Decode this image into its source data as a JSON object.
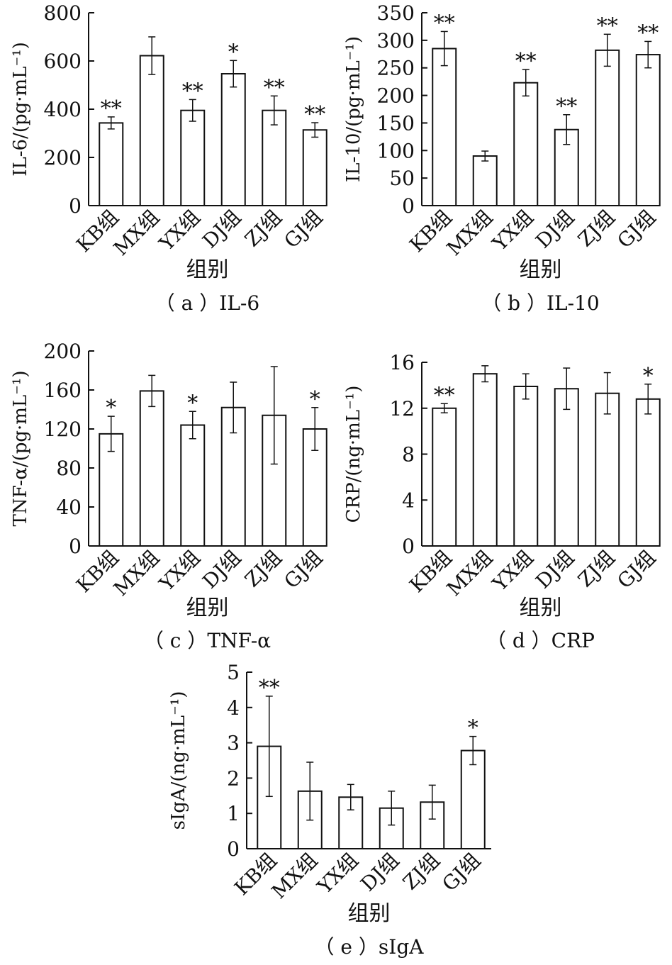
{
  "chart_data": [
    {
      "type": "bar",
      "caption": "（ a ）IL-6",
      "xlabel": "组别",
      "ylabel": "IL-6/(pg·mL⁻¹)",
      "categories": [
        "KB组",
        "MX组",
        "YX组",
        "DJ组",
        "ZJ组",
        "GJ组"
      ],
      "values": [
        343,
        622,
        395,
        547,
        395,
        314
      ],
      "errors": [
        25,
        78,
        45,
        55,
        60,
        30
      ],
      "annotations": [
        "**",
        "",
        "**",
        "*",
        "**",
        "**"
      ],
      "yticks": [
        "0",
        "200",
        "400",
        "600",
        "800"
      ],
      "ylim": [
        0,
        800
      ]
    },
    {
      "type": "bar",
      "caption": "（ b ）IL-10",
      "xlabel": "组别",
      "ylabel": "IL-10/(pg·mL⁻¹)",
      "categories": [
        "KB组",
        "MX组",
        "YX组",
        "DJ组",
        "ZJ组",
        "GJ组"
      ],
      "values": [
        285,
        90,
        223,
        138,
        282,
        274
      ],
      "errors": [
        31,
        9,
        24,
        27,
        29,
        24
      ],
      "annotations": [
        "**",
        "",
        "**",
        "**",
        "**",
        "**"
      ],
      "yticks": [
        "0",
        "50",
        "100",
        "150",
        "200",
        "250",
        "300",
        "350"
      ],
      "ylim": [
        0,
        350
      ]
    },
    {
      "type": "bar",
      "caption": "（ c ）TNF-α",
      "xlabel": "组别",
      "ylabel": "TNF-α/(pg·mL⁻¹)",
      "categories": [
        "KB组",
        "MX组",
        "YX组",
        "DJ组",
        "ZJ组",
        "GJ组"
      ],
      "values": [
        115,
        159,
        124,
        142,
        134,
        120
      ],
      "errors": [
        18,
        16,
        14,
        26,
        50,
        22
      ],
      "annotations": [
        "*",
        "",
        "*",
        "",
        "",
        "*"
      ],
      "yticks": [
        "0",
        "40",
        "80",
        "120",
        "160",
        "200"
      ],
      "ylim": [
        0,
        200
      ]
    },
    {
      "type": "bar",
      "caption": "（ d ）CRP",
      "xlabel": "组别",
      "ylabel": "CRP/(ng·mL⁻¹)",
      "categories": [
        "KB组",
        "MX组",
        "YX组",
        "DJ组",
        "ZJ组",
        "GJ组"
      ],
      "values": [
        12.0,
        15.0,
        13.9,
        13.7,
        13.3,
        12.8
      ],
      "errors": [
        0.4,
        0.7,
        1.1,
        1.8,
        1.8,
        1.3
      ],
      "annotations": [
        "**",
        "",
        "",
        "",
        "",
        "*"
      ],
      "yticks": [
        "0",
        "4",
        "8",
        "12",
        "16"
      ],
      "ylim": [
        0,
        16
      ]
    },
    {
      "type": "bar",
      "caption": "（ e ）sIgA",
      "xlabel": "组别",
      "ylabel": "sIgA/(ng·mL⁻¹)",
      "categories": [
        "KB组",
        "MX组",
        "YX组",
        "DJ组",
        "ZJ组",
        "GJ组"
      ],
      "values": [
        2.9,
        1.63,
        1.46,
        1.15,
        1.32,
        2.78
      ],
      "errors": [
        1.42,
        0.82,
        0.36,
        0.48,
        0.48,
        0.4
      ],
      "annotations": [
        "**",
        "",
        "",
        "",
        "",
        "*"
      ],
      "yticks": [
        "0",
        "1",
        "2",
        "3",
        "4",
        "5"
      ],
      "ylim": [
        0,
        5
      ]
    }
  ]
}
